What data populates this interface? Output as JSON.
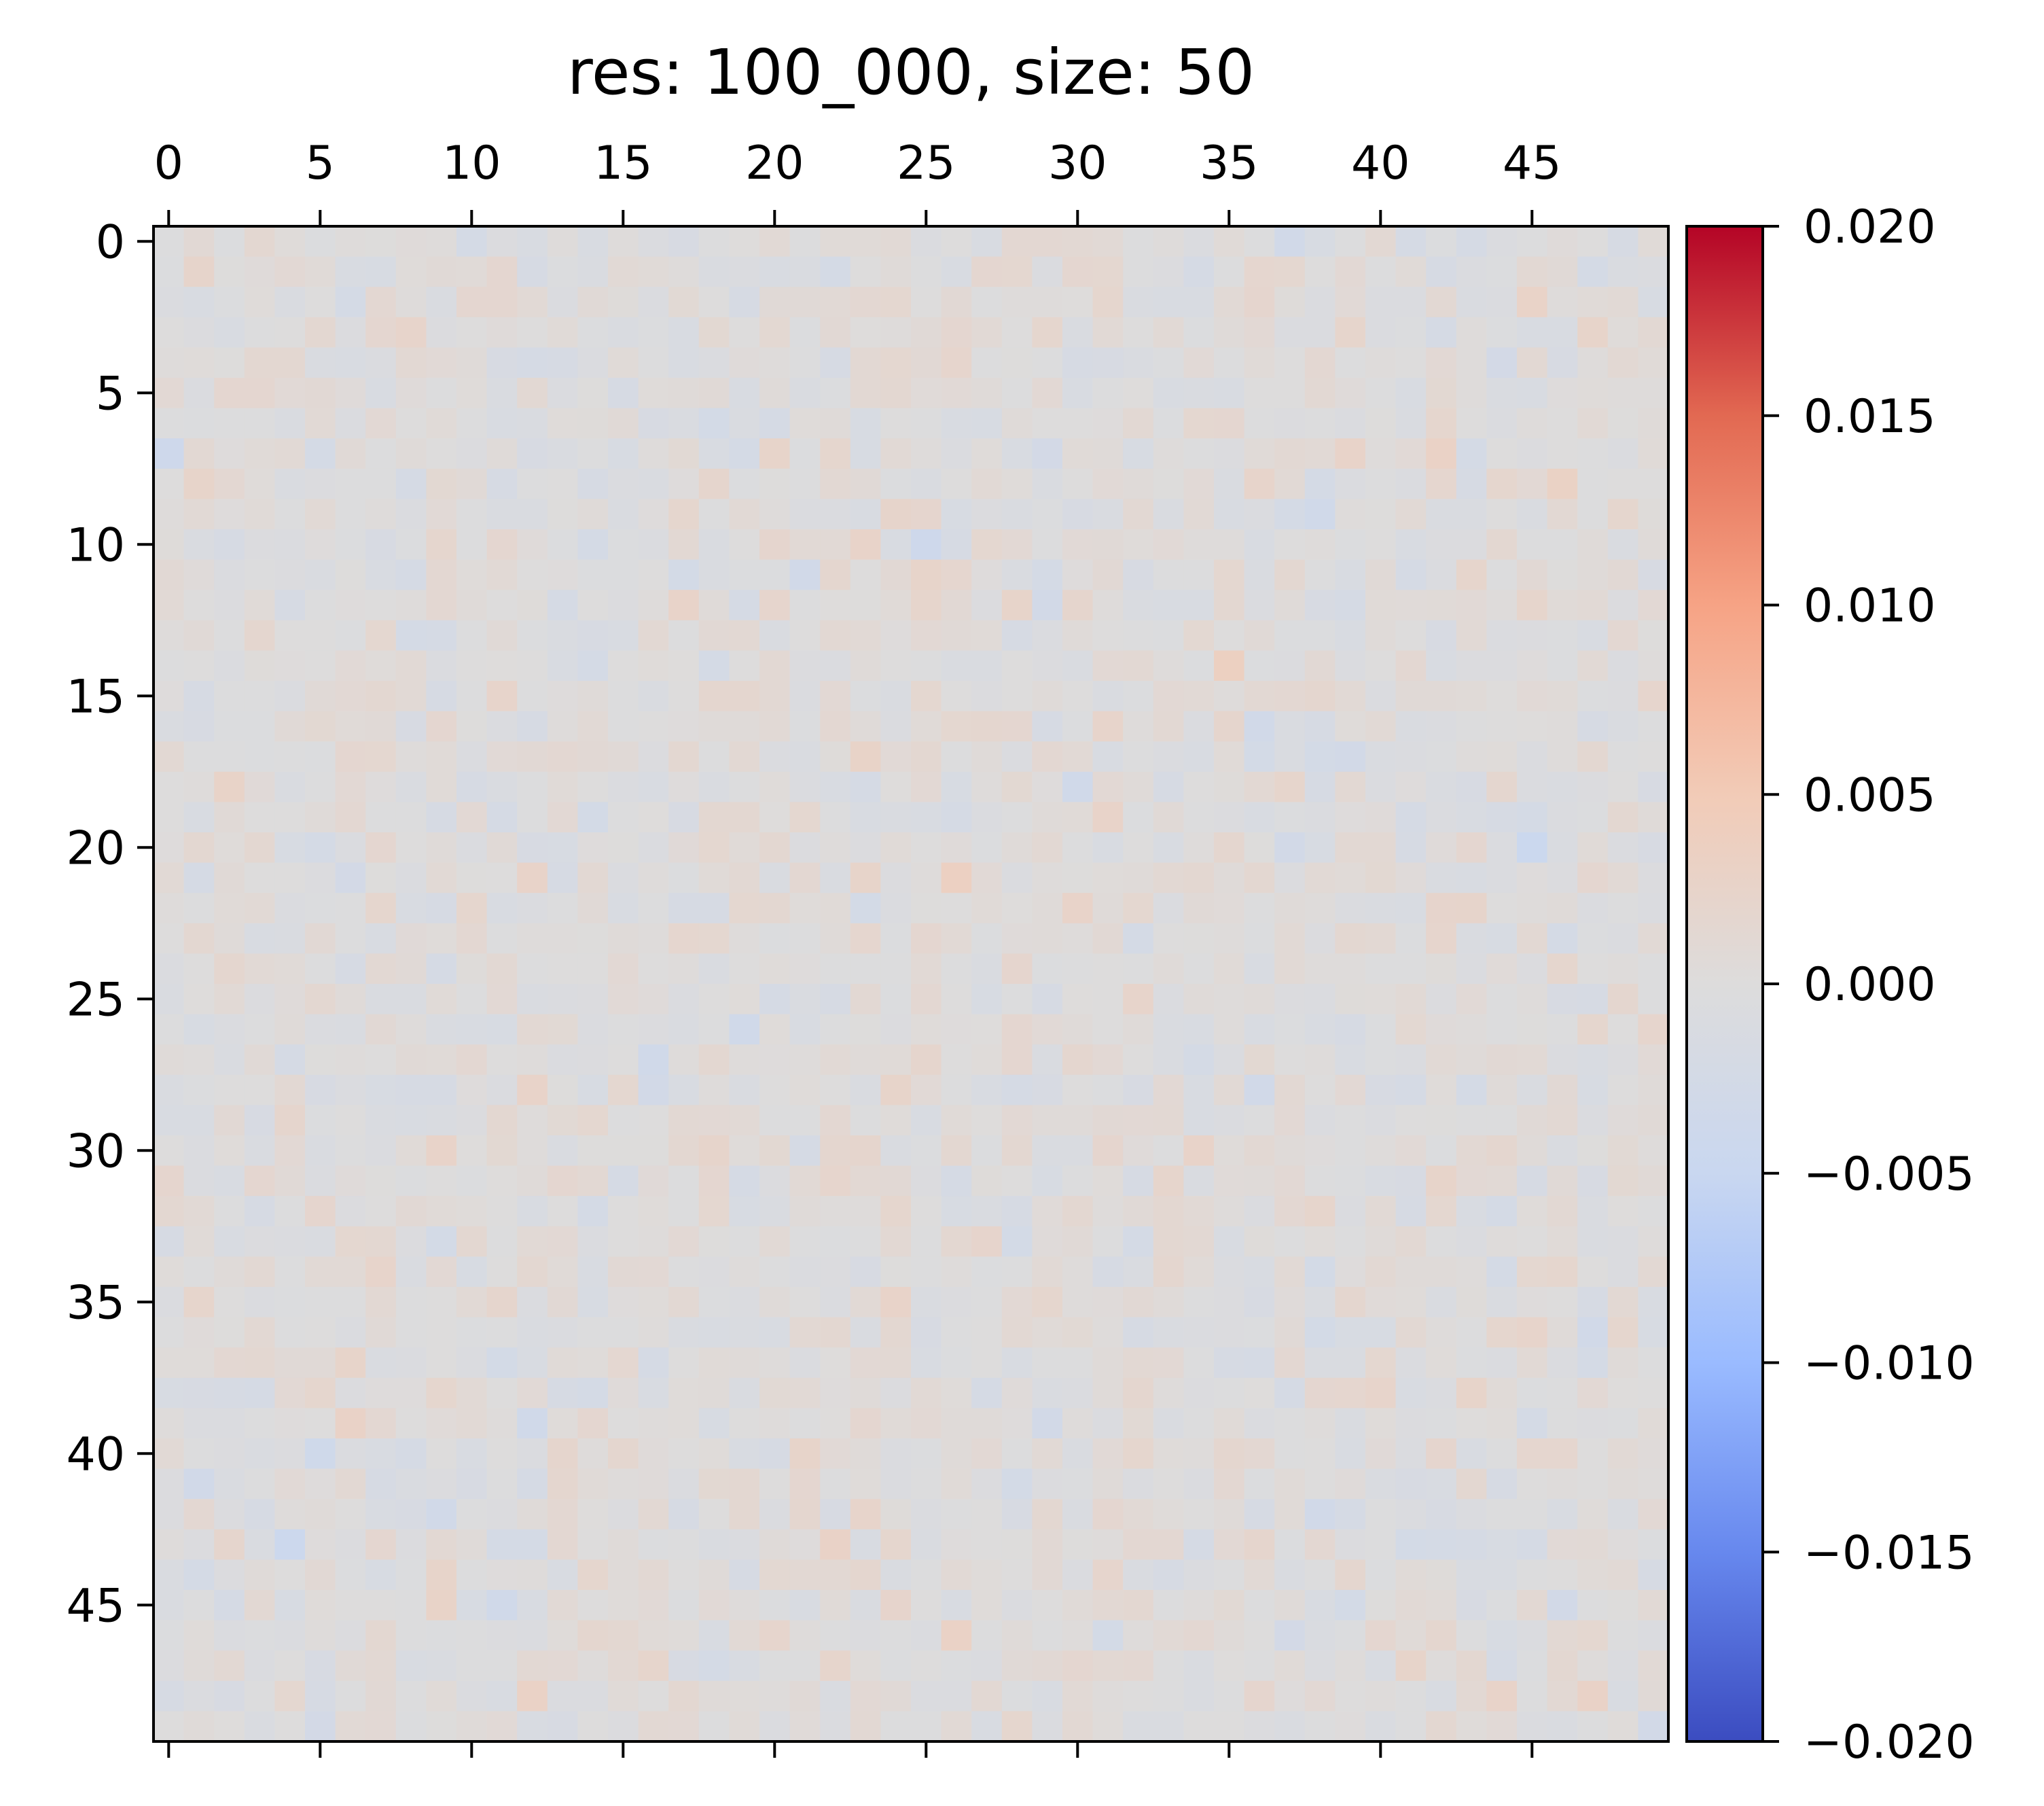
{
  "chart_data": {
    "type": "heatmap",
    "title": "res: 100_000, size: 50",
    "rows": 50,
    "cols": 50,
    "colormap": "coolwarm",
    "vmin": -0.02,
    "vmax": 0.02,
    "x_ticks": [
      0,
      5,
      10,
      15,
      20,
      25,
      30,
      35,
      40,
      45
    ],
    "x_tick_labels": [
      "0",
      "5",
      "10",
      "15",
      "20",
      "25",
      "30",
      "35",
      "40",
      "45"
    ],
    "x_tick_position": "top",
    "y_ticks": [
      0,
      5,
      10,
      15,
      20,
      25,
      30,
      35,
      40,
      45
    ],
    "y_tick_labels": [
      "0",
      "5",
      "10",
      "15",
      "20",
      "25",
      "30",
      "35",
      "40",
      "45"
    ],
    "colorbar": {
      "ticks": [
        0.02,
        0.015,
        0.01,
        0.005,
        0.0,
        -0.005,
        -0.01,
        -0.015,
        -0.02
      ],
      "tick_labels": [
        "0.020",
        "0.015",
        "0.010",
        "0.005",
        "0.000",
        "−0.005",
        "−0.010",
        "−0.015",
        "−0.020"
      ],
      "colors": [
        "#3b4cc0",
        "#6788ee",
        "#9abbff",
        "#c9d7f0",
        "#dddcdc",
        "#f2cbb7",
        "#f6a385",
        "#e26952",
        "#b40426"
      ]
    },
    "value_range_note": "",
    "values_z": "noise",
    "values": null
  }
}
